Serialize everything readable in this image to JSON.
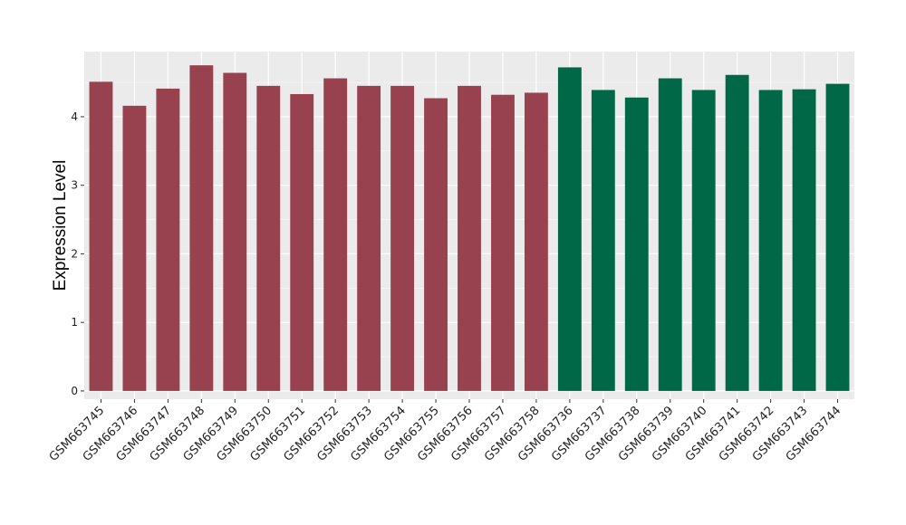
{
  "chart_data": {
    "type": "bar",
    "title": "",
    "xlabel": "",
    "ylabel": "Expression Level",
    "ylim": [
      -0.12,
      4.95
    ],
    "y_ticks": [
      0,
      1,
      2,
      3,
      4
    ],
    "grid": true,
    "legend": "none",
    "colors": {
      "panel_background": "#ebebeb",
      "grid_major": "#ffffff",
      "group_1": "#99424f",
      "group_2": "#006846"
    },
    "categories": [
      "GSM663745",
      "GSM663746",
      "GSM663747",
      "GSM663748",
      "GSM663749",
      "GSM663750",
      "GSM663751",
      "GSM663752",
      "GSM663753",
      "GSM663754",
      "GSM663755",
      "GSM663756",
      "GSM663757",
      "GSM663758",
      "GSM663736",
      "GSM663737",
      "GSM663738",
      "GSM663739",
      "GSM663740",
      "GSM663741",
      "GSM663742",
      "GSM663743",
      "GSM663744"
    ],
    "values": [
      4.51,
      4.16,
      4.41,
      4.75,
      4.64,
      4.45,
      4.33,
      4.56,
      4.45,
      4.45,
      4.27,
      4.45,
      4.32,
      4.35,
      4.72,
      4.39,
      4.28,
      4.56,
      4.39,
      4.61,
      4.39,
      4.4,
      4.48
    ],
    "bar_colors": [
      "#99424f",
      "#99424f",
      "#99424f",
      "#99424f",
      "#99424f",
      "#99424f",
      "#99424f",
      "#99424f",
      "#99424f",
      "#99424f",
      "#99424f",
      "#99424f",
      "#99424f",
      "#99424f",
      "#006846",
      "#006846",
      "#006846",
      "#006846",
      "#006846",
      "#006846",
      "#006846",
      "#006846",
      "#006846"
    ]
  }
}
